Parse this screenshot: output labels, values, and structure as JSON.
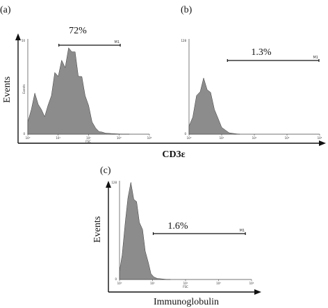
{
  "colors": {
    "histogram_fill": "#8c8c8c",
    "histogram_stroke": "#3a3a3a",
    "axis": "#111111"
  },
  "figure": {
    "ylabel_top": "Events",
    "xlabel_top": "CD3ε",
    "ylabel_bottom": "Events",
    "xlabel_bottom": "Immunoglobulin"
  },
  "chart_data": [
    {
      "type": "area",
      "panel_label": "(a)",
      "gate_percent": "72%",
      "gate_label": "M1",
      "gate_range": [
        10.5,
        1100
      ],
      "y_axis_caption": "Events",
      "y_top_tick": "50",
      "y_bottom_tick": "0",
      "x_axis_caption": "FSC",
      "xticks": [
        "10⁰",
        "10¹",
        "10²",
        "10³",
        "10⁴"
      ],
      "x_scale": "log",
      "xlim": [
        1,
        10000
      ],
      "ylim": [
        0,
        50
      ],
      "x": [
        1,
        1.3,
        1.7,
        2.2,
        2.8,
        3.6,
        4.6,
        6,
        7.7,
        10,
        13,
        17,
        22,
        28,
        36,
        46,
        60,
        77,
        100,
        130,
        170,
        220,
        280,
        360,
        460,
        600,
        770,
        1000,
        1300,
        1700,
        2200
      ],
      "y": [
        6,
        14,
        20,
        17,
        12,
        10,
        14,
        22,
        30,
        33,
        36,
        38,
        42,
        47,
        40,
        33,
        28,
        22,
        14,
        7,
        3,
        1.5,
        1,
        0.6,
        0.4,
        0.3,
        0.2,
        0.1,
        0,
        0,
        0
      ]
    },
    {
      "type": "area",
      "panel_label": "(b)",
      "gate_percent": "1.3%",
      "gate_label": "M1",
      "gate_range": [
        15,
        9500
      ],
      "y_top_tick": "128",
      "y_bottom_tick": "0",
      "xticks": [
        "10⁰",
        "10¹",
        "10²",
        "10³",
        "10⁴"
      ],
      "x_scale": "log",
      "xlim": [
        1,
        10000
      ],
      "ylim": [
        0,
        128
      ],
      "x": [
        1,
        1.3,
        1.7,
        2.2,
        2.8,
        3.6,
        4.6,
        6,
        7.7,
        10,
        13,
        17,
        22,
        28,
        36
      ],
      "y": [
        10,
        25,
        48,
        62,
        70,
        65,
        52,
        36,
        20,
        10,
        5,
        2,
        1,
        0.5,
        0
      ]
    },
    {
      "type": "area",
      "panel_label": "(c)",
      "gate_percent": "1.6%",
      "gate_label": "M1",
      "gate_range": [
        10.5,
        6500
      ],
      "y_top_tick": "128",
      "y_bottom_tick": "0",
      "x_axis_caption": "FSC",
      "xticks": [
        "10⁰",
        "10¹",
        "10²",
        "10³",
        "10⁴"
      ],
      "x_scale": "log",
      "xlim": [
        1,
        10000
      ],
      "ylim": [
        0,
        128
      ],
      "x": [
        1,
        1.2,
        1.5,
        1.8,
        2.2,
        2.7,
        3.3,
        4,
        5,
        6,
        7.5,
        9,
        11,
        14,
        18,
        25,
        35
      ],
      "y": [
        10,
        35,
        70,
        112,
        120,
        110,
        95,
        80,
        60,
        40,
        20,
        8,
        3,
        1.5,
        0.8,
        0.3,
        0
      ]
    }
  ]
}
